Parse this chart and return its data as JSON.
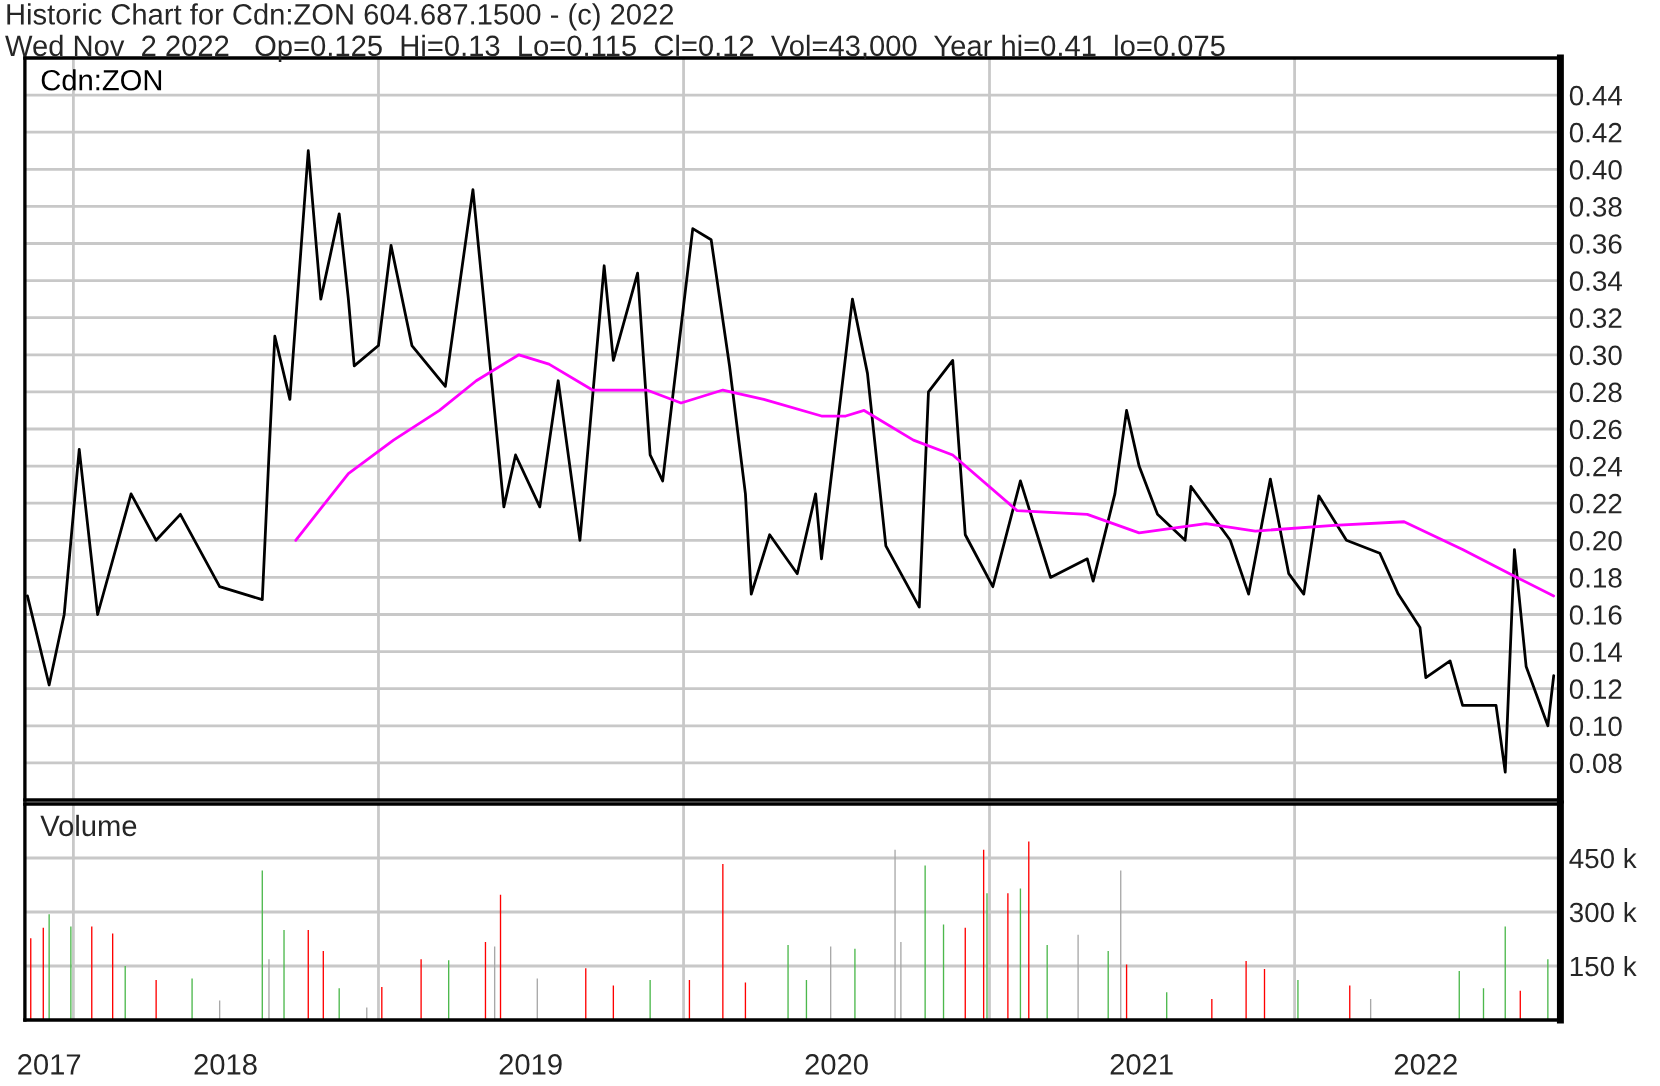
{
  "chart_data": [
    {
      "type": "line",
      "title": "Historic Chart for Cdn:ZON 604.687.1500 - (c) 2022",
      "subtitle": "Wed Nov  2 2022   Op=0.125  Hi=0.13  Lo=0.115  Cl=0.12  Vol=43,000  Year hi=0.41  lo=0.075",
      "series": [
        {
          "name": "Cdn:ZON",
          "color": "#000000",
          "x": [
            "2017-11-07",
            "2017-12-03",
            "2017-12-21",
            "2018-01-08",
            "2018-01-30",
            "2018-03-11",
            "2018-04-10",
            "2018-05-09",
            "2018-06-25",
            "2018-08-15",
            "2018-08-23",
            "2018-08-30",
            "2018-09-17",
            "2018-10-09",
            "2018-10-24",
            "2018-11-15",
            "2018-11-26",
            "2018-12-03",
            "2019-01-01",
            "2019-01-16",
            "2019-02-10",
            "2019-03-22",
            "2019-04-24",
            "2019-05-09",
            "2019-05-31",
            "2019-06-14",
            "2019-07-13",
            "2019-08-04",
            "2019-08-30",
            "2019-09-28",
            "2019-10-09",
            "2019-11-07",
            "2019-11-22",
            "2019-12-07",
            "2020-01-12",
            "2020-02-03",
            "2020-02-25",
            "2020-03-15",
            "2020-03-22",
            "2020-04-13",
            "2020-05-16",
            "2020-06-07",
            "2020-06-14",
            "2020-07-21",
            "2020-08-08",
            "2020-08-30",
            "2020-10-09",
            "2020-10-20",
            "2020-11-18",
            "2020-12-03",
            "2021-01-05",
            "2021-02-07",
            "2021-03-15",
            "2021-04-28",
            "2021-05-05",
            "2021-05-31",
            "2021-06-14",
            "2021-06-29",
            "2021-07-21",
            "2021-08-23",
            "2021-08-30",
            "2021-10-16",
            "2021-11-07",
            "2021-12-03",
            "2021-12-25",
            "2022-01-12",
            "2022-01-30",
            "2022-03-04",
            "2022-04-13",
            "2022-05-05",
            "2022-05-31",
            "2022-06-07",
            "2022-07-06",
            "2022-07-21",
            "2022-08-30",
            "2022-09-10",
            "2022-09-21",
            "2022-10-05",
            "2022-10-31",
            "2022-11-07"
          ],
          "values": [
            0.17,
            0.122,
            0.16,
            0.249,
            0.16,
            0.225,
            0.2,
            0.214,
            0.175,
            0.168,
            0.246,
            0.31,
            0.276,
            0.41,
            0.33,
            0.376,
            0.33,
            0.294,
            0.305,
            0.359,
            0.305,
            0.283,
            0.389,
            0.32,
            0.218,
            0.246,
            0.218,
            0.286,
            0.2,
            0.348,
            0.297,
            0.344,
            0.246,
            0.232,
            0.368,
            0.362,
            0.294,
            0.225,
            0.171,
            0.203,
            0.182,
            0.225,
            0.19,
            0.33,
            0.29,
            0.197,
            0.164,
            0.28,
            0.297,
            0.203,
            0.175,
            0.232,
            0.18,
            0.19,
            0.178,
            0.225,
            0.27,
            0.24,
            0.214,
            0.2,
            0.229,
            0.2,
            0.171,
            0.233,
            0.182,
            0.171,
            0.224,
            0.2,
            0.193,
            0.171,
            0.153,
            0.126,
            0.135,
            0.111,
            0.111,
            0.075,
            0.195,
            0.132,
            0.1,
            0.127
          ]
        },
        {
          "color": "#ff00ff",
          "x": [
            "2018-09-24",
            "2018-11-26",
            "2019-01-19",
            "2019-03-15",
            "2019-04-28",
            "2019-06-18",
            "2019-07-24",
            "2019-09-14",
            "2019-11-18",
            "2019-12-29",
            "2020-02-17",
            "2020-04-06",
            "2020-06-14",
            "2020-07-13",
            "2020-08-04",
            "2020-10-02",
            "2020-11-18",
            "2021-02-03",
            "2021-04-28",
            "2021-06-29",
            "2021-09-17",
            "2021-11-15",
            "2022-02-17",
            "2022-05-12",
            "2022-07-21",
            "2022-09-24",
            "2022-11-07"
          ],
          "values": [
            0.2,
            0.236,
            0.254,
            0.27,
            0.286,
            0.3,
            0.295,
            0.281,
            0.281,
            0.274,
            0.281,
            0.276,
            0.267,
            0.267,
            0.27,
            0.254,
            0.246,
            0.216,
            0.214,
            0.204,
            0.209,
            0.205,
            0.208,
            0.21,
            0.195,
            0.18,
            0.17
          ]
        }
      ],
      "xlim": [
        "2017-11-04",
        "2022-11-15"
      ],
      "xticks": [
        {
          "value": "2018-01-01",
          "label": null
        },
        {
          "value": "2019-01-01",
          "label": null
        },
        {
          "value": "2020-01-01",
          "label": null
        },
        {
          "value": "2021-01-01",
          "label": null
        },
        {
          "value": "2022-01-01",
          "label": null
        }
      ],
      "ylim": [
        0.06,
        0.46
      ],
      "yticks": [
        {
          "value": 0.08,
          "label": "0.08"
        },
        {
          "value": 0.1,
          "label": "0.10"
        },
        {
          "value": 0.12,
          "label": "0.12"
        },
        {
          "value": 0.14,
          "label": "0.14"
        },
        {
          "value": 0.16,
          "label": "0.16"
        },
        {
          "value": 0.18,
          "label": "0.18"
        },
        {
          "value": 0.2,
          "label": "0.20"
        },
        {
          "value": 0.22,
          "label": "0.22"
        },
        {
          "value": 0.24,
          "label": "0.24"
        },
        {
          "value": 0.26,
          "label": "0.26"
        },
        {
          "value": 0.28,
          "label": "0.28"
        },
        {
          "value": 0.3,
          "label": "0.30"
        },
        {
          "value": 0.32,
          "label": "0.32"
        },
        {
          "value": 0.34,
          "label": "0.34"
        },
        {
          "value": 0.36,
          "label": "0.36"
        },
        {
          "value": 0.38,
          "label": "0.38"
        },
        {
          "value": 0.4,
          "label": "0.40"
        },
        {
          "value": 0.42,
          "label": "0.42"
        },
        {
          "value": 0.44,
          "label": "0.44"
        }
      ],
      "tick_labels": "y",
      "grid": true
    },
    {
      "type": "bar",
      "title": "Volume",
      "x": [
        "2017-11-11",
        "2017-11-26",
        "2017-12-03",
        "2017-12-29",
        "2018-01-23",
        "2018-02-17",
        "2018-03-04",
        "2018-04-10",
        "2018-05-23",
        "2018-06-25",
        "2018-08-15",
        "2018-08-23",
        "2018-09-10",
        "2018-10-09",
        "2018-10-27",
        "2018-11-15",
        "2018-12-18",
        "2019-01-05",
        "2019-02-21",
        "2019-03-26",
        "2019-04-21",
        "2019-05-09",
        "2019-05-20",
        "2019-05-27",
        "2019-07-10",
        "2019-09-06",
        "2019-10-09",
        "2019-11-04",
        "2019-11-22",
        "2020-01-08",
        "2020-02-17",
        "2020-03-15",
        "2020-05-05",
        "2020-05-27",
        "2020-06-25",
        "2020-07-24",
        "2020-09-10",
        "2020-09-17",
        "2020-10-16",
        "2020-11-07",
        "2020-12-03",
        "2020-12-25",
        "2020-12-29",
        "2021-01-23",
        "2021-02-07",
        "2021-02-17",
        "2021-03-11",
        "2021-04-17",
        "2021-05-23",
        "2021-06-07",
        "2021-06-14",
        "2021-08-01",
        "2021-09-24",
        "2021-11-04",
        "2021-11-26",
        "2022-01-05",
        "2022-03-08",
        "2022-04-02",
        "2022-07-17",
        "2022-08-15",
        "2022-09-10",
        "2022-09-28",
        "2022-10-31"
      ],
      "values": [
        227000,
        256000,
        294000,
        260000,
        260000,
        240000,
        150000,
        111000,
        115000,
        54000,
        415000,
        169000,
        250000,
        250000,
        192000,
        88000,
        35000,
        92000,
        169000,
        166000,
        null,
        217000,
        204000,
        348000,
        115000,
        144000,
        96000,
        null,
        111000,
        111000,
        433000,
        104000,
        208000,
        111000,
        204000,
        198000,
        473000,
        217000,
        429000,
        265000,
        256000,
        473000,
        352000,
        352000,
        365000,
        496000,
        208000,
        237000,
        192000,
        415000,
        154000,
        77000,
        58000,
        164000,
        142000,
        111000,
        96000,
        58000,
        136000,
        88000,
        260000,
        81000,
        169000
      ],
      "colors": [
        "#ff0000",
        "#ff0000",
        "#4cb84c",
        "#4cb84c",
        "#ff0000",
        "#ff0000",
        "#4cb84c",
        "#ff0000",
        "#4cb84c",
        "#a8a8a8",
        "#4cb84c",
        "#a8a8a8",
        "#4cb84c",
        "#ff0000",
        "#ff0000",
        "#4cb84c",
        "#a8a8a8",
        "#ff0000",
        "#ff0000",
        "#4cb84c",
        "#ff0000",
        "#ff0000",
        "#a8a8a8",
        "#ff0000",
        "#a8a8a8",
        "#ff0000",
        "#ff0000",
        "#4cb84c",
        "#4cb84c",
        "#ff0000",
        "#ff0000",
        "#ff0000",
        "#4cb84c",
        "#4cb84c",
        "#a8a8a8",
        "#4cb84c",
        "#a8a8a8",
        "#a8a8a8",
        "#4cb84c",
        "#4cb84c",
        "#ff0000",
        "#ff0000",
        "#4cb84c",
        "#ff0000",
        "#4cb84c",
        "#ff0000",
        "#4cb84c",
        "#a8a8a8",
        "#4cb84c",
        "#a8a8a8",
        "#ff0000",
        "#4cb84c",
        "#ff0000",
        "#ff0000",
        "#ff0000",
        "#4cb84c",
        "#ff0000",
        "#a8a8a8",
        "#4cb84c",
        "#4cb84c",
        "#4cb84c",
        "#ff0000",
        "#4cb84c"
      ],
      "xlim": [
        "2017-11-04",
        "2022-11-15"
      ],
      "xticks": [
        {
          "value": "2018-01-01",
          "label": null
        },
        {
          "value": "2019-01-01",
          "label": null
        },
        {
          "value": "2020-01-01",
          "label": null
        },
        {
          "value": "2021-01-01",
          "label": null
        },
        {
          "value": "2022-01-01",
          "label": null
        },
        {
          "value": "2017-12-03",
          "label": "2017"
        },
        {
          "value": "2018-07-02",
          "label": "2018"
        },
        {
          "value": "2019-07-02",
          "label": "2019"
        },
        {
          "value": "2020-07-02",
          "label": "2020"
        },
        {
          "value": "2021-07-02",
          "label": "2021"
        },
        {
          "value": "2022-06-07",
          "label": "2022"
        }
      ],
      "ylim": [
        0,
        600000
      ],
      "yticks": [
        {
          "value": 150000,
          "label": "150 k"
        },
        {
          "value": 300000,
          "label": "300 k"
        },
        {
          "value": 450000,
          "label": "450 k"
        }
      ],
      "grid": true
    }
  ]
}
